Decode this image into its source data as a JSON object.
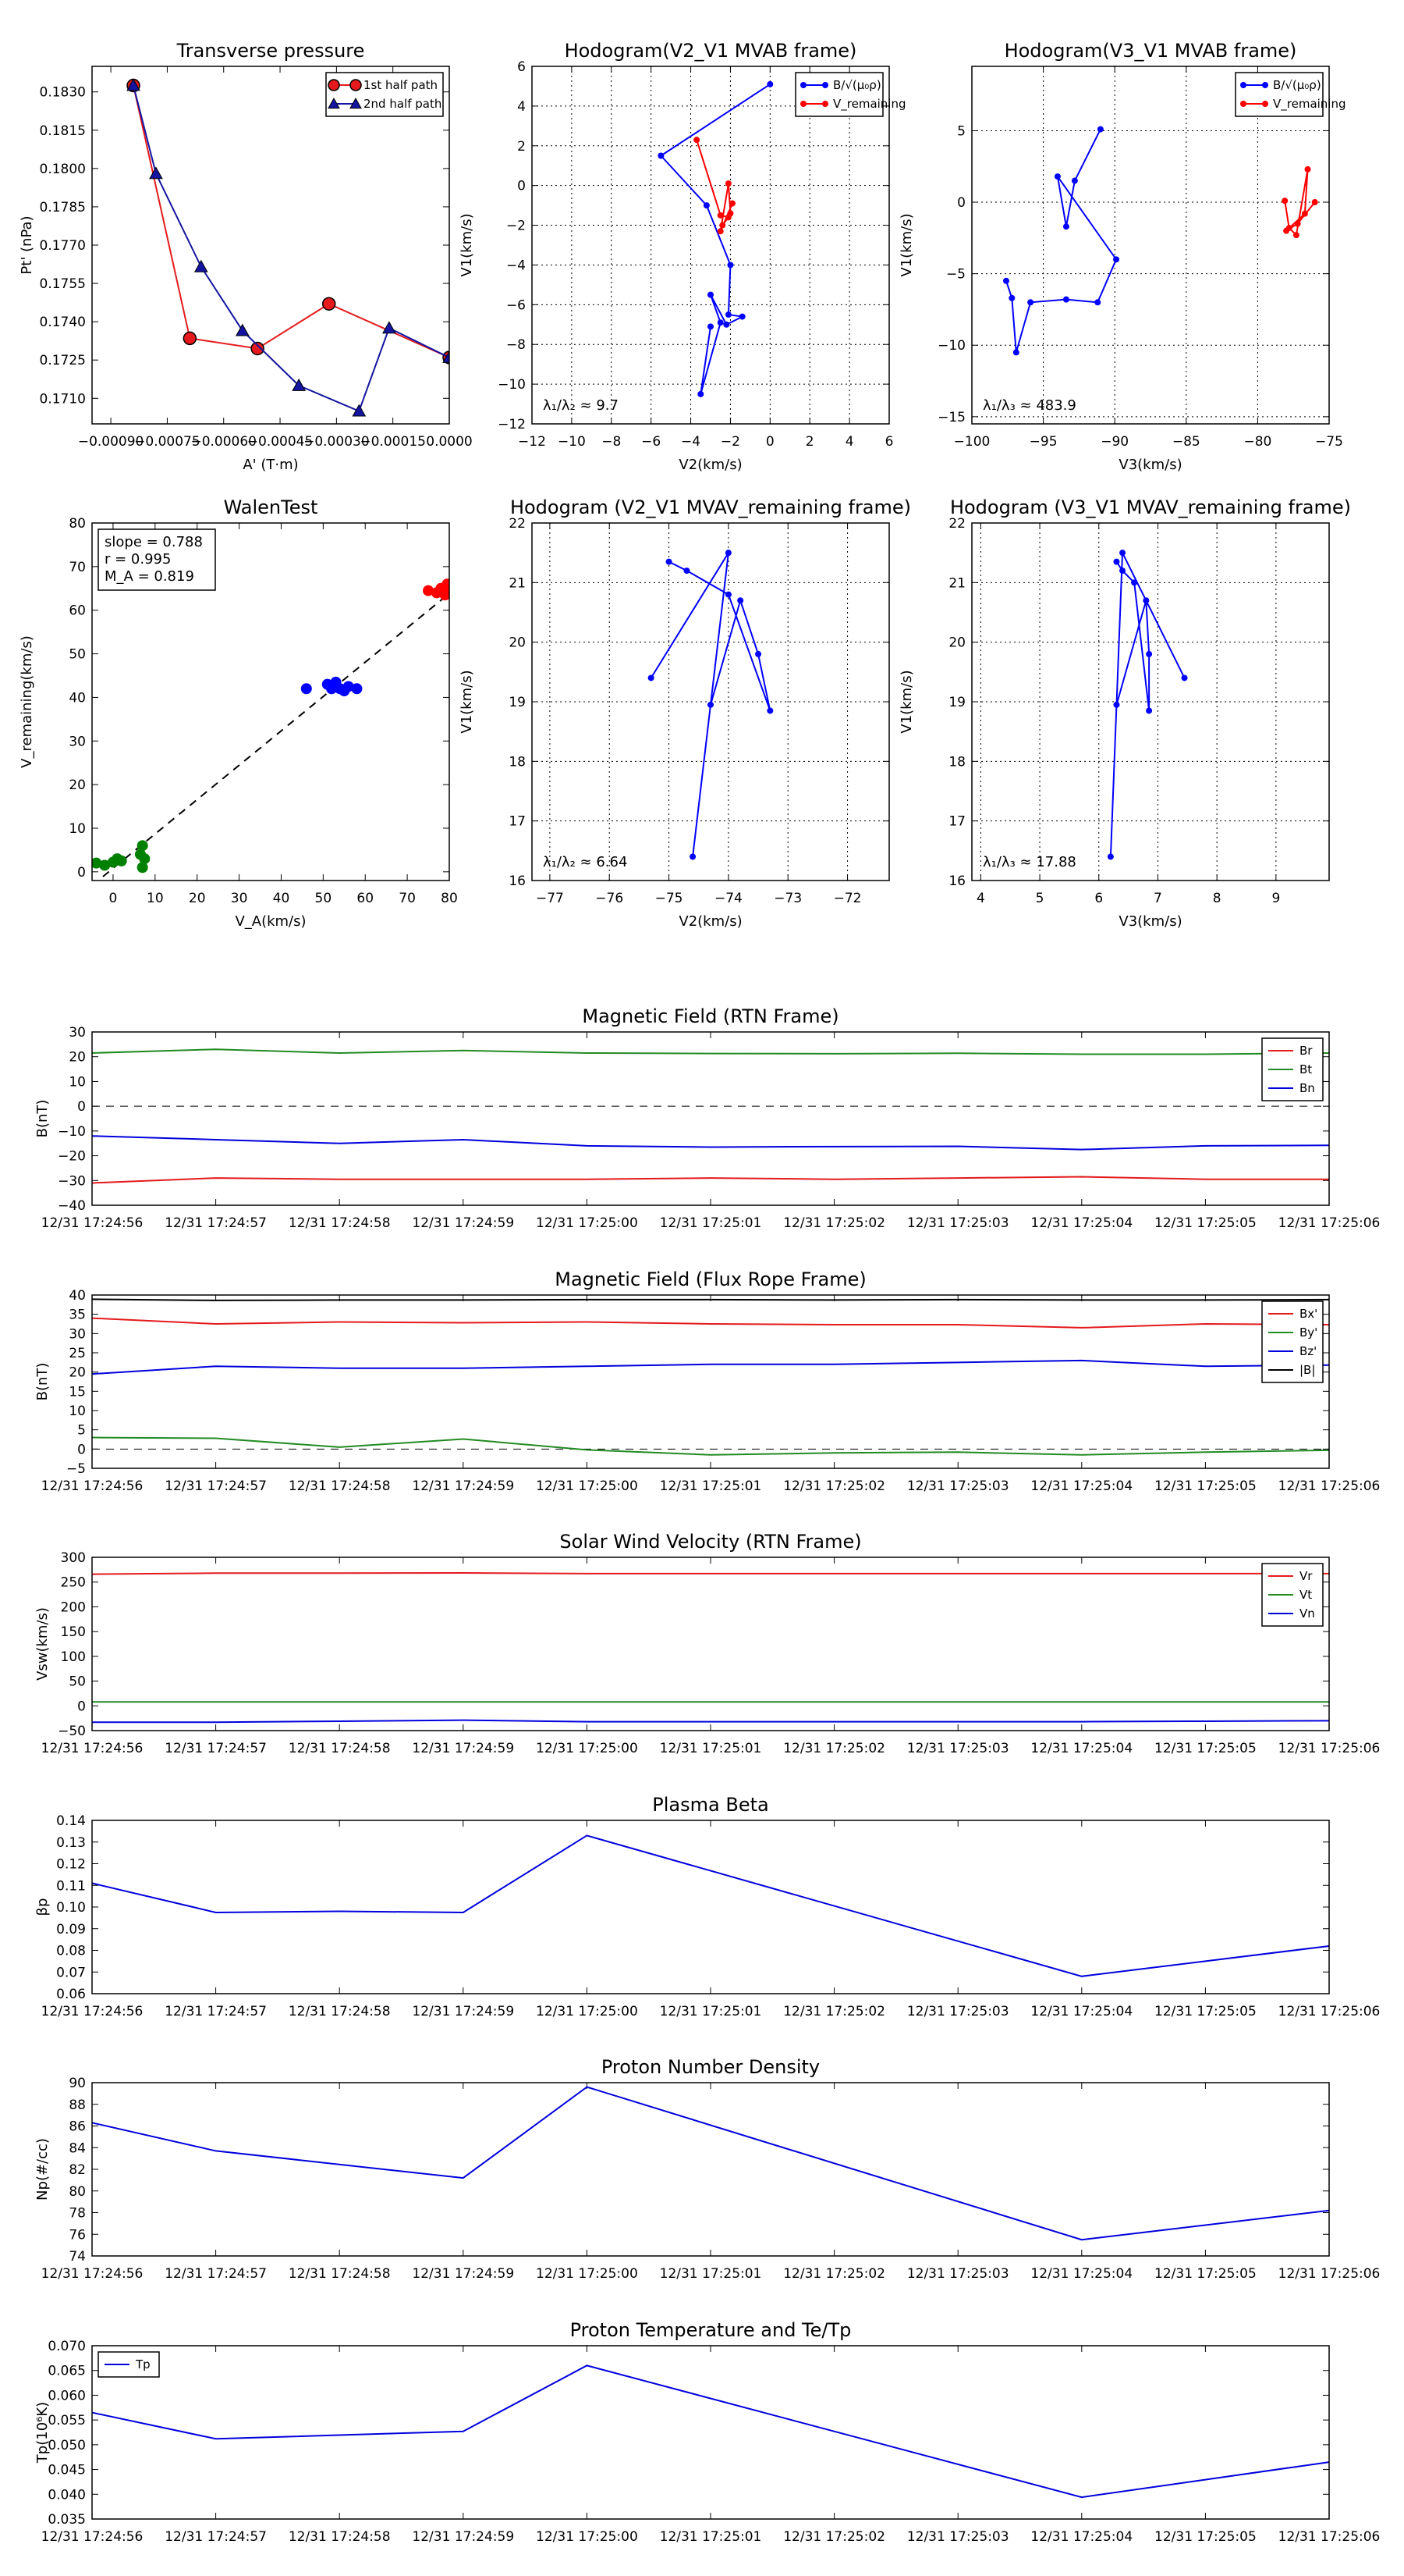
{
  "chart_data": [
    {
      "id": "transverse-pressure",
      "type": "line",
      "title": "Transverse pressure",
      "xlabel": "A' (T·m)",
      "ylabel": "Pt' (nPa)",
      "xlim": [
        -0.00095,
        0.0
      ],
      "ylim": [
        0.17,
        0.184
      ],
      "xticks": [
        -0.0009,
        -0.00075,
        -0.0006,
        -0.00045,
        -0.0003,
        -0.00015,
        0.0
      ],
      "xtick_labels": [
        "−0.00090",
        "−0.00075",
        "−0.00060",
        "−0.00045",
        "−0.00030",
        "−0.00015",
        "0.0000"
      ],
      "yticks": [
        0.171,
        0.1725,
        0.174,
        0.1755,
        0.177,
        0.1785,
        0.18,
        0.1815,
        0.183
      ],
      "ytick_labels": [
        "0.1710",
        "0.1725",
        "0.1740",
        "0.1755",
        "0.1770",
        "0.1785",
        "0.1800",
        "0.1815",
        "0.1830"
      ],
      "legend_position": "top-right",
      "series": [
        {
          "name": "1st half path",
          "color": "#e41a1c",
          "marker": "circle",
          "x": [
            -0.00084,
            -0.00069,
            -0.00051,
            -0.00032,
            0.0
          ],
          "y": [
            0.18325,
            0.17335,
            0.17295,
            0.1747,
            0.1726
          ]
        },
        {
          "name": "2nd half path",
          "color": "#1414a0",
          "marker": "triangle",
          "x": [
            -0.00084,
            -0.00078,
            -0.00066,
            -0.00055,
            -0.0004,
            -0.00024,
            -0.00016,
            0.0
          ],
          "y": [
            0.18325,
            0.1798,
            0.17615,
            0.17365,
            0.1715,
            0.1705,
            0.17375,
            0.1726
          ]
        }
      ]
    },
    {
      "id": "hodogram-v2-v1-mvab",
      "type": "line",
      "title": "Hodogram(V2_V1 MVAB frame)",
      "xlabel": "V2(km/s)",
      "ylabel": "V1(km/s)",
      "xlim": [
        -12,
        6
      ],
      "ylim": [
        -12,
        6
      ],
      "xticks": [
        -12,
        -10,
        -8,
        -6,
        -4,
        -2,
        0,
        2,
        4,
        6
      ],
      "xtick_labels": [
        "−12",
        "−10",
        "−8",
        "−6",
        "−4",
        "−2",
        "0",
        "2",
        "4",
        "6"
      ],
      "yticks": [
        -12,
        -10,
        -8,
        -6,
        -4,
        -2,
        0,
        2,
        4,
        6
      ],
      "ytick_labels": [
        "−12",
        "−10",
        "−8",
        "−6",
        "−4",
        "−2",
        "0",
        "2",
        "4",
        "6"
      ],
      "grid": true,
      "annotation": "λ₁/λ₂ ≈ 9.7",
      "legend_position": "top-right",
      "series": [
        {
          "name": "B/√(μ₀ρ)",
          "color": "#0000ff",
          "x": [
            0.0,
            -5.5,
            -3.2,
            -2.0,
            -2.1,
            -1.4,
            -2.2,
            -3.0,
            -2.5,
            -3.5,
            -3.0
          ],
          "y": [
            5.1,
            1.5,
            -1.0,
            -4.0,
            -6.5,
            -6.6,
            -7.0,
            -5.5,
            -6.9,
            -10.5,
            -7.1
          ]
        },
        {
          "name": "V_remaining",
          "color": "#ff0000",
          "x": [
            -3.7,
            -2.5,
            -2.1,
            -2.4,
            -2.0,
            -2.1,
            -2.5,
            -1.9
          ],
          "y": [
            2.3,
            -1.5,
            -1.6,
            -2.0,
            -1.4,
            0.1,
            -2.3,
            -0.9
          ]
        }
      ]
    },
    {
      "id": "hodogram-v3-v1-mvab",
      "type": "line",
      "title": "Hodogram(V3_V1 MVAB frame)",
      "xlabel": "V3(km/s)",
      "ylabel": "V1(km/s)",
      "xlim": [
        -100,
        -75
      ],
      "ylim": [
        -15.5,
        9.5
      ],
      "xticks": [
        -100,
        -95,
        -90,
        -85,
        -80,
        -75
      ],
      "xtick_labels": [
        "−100",
        "−95",
        "−90",
        "−85",
        "−80",
        "−75"
      ],
      "yticks": [
        -15,
        -10,
        -5,
        0,
        5
      ],
      "ytick_labels": [
        "−15",
        "−10",
        "−5",
        "0",
        "5"
      ],
      "grid": true,
      "annotation": "λ₁/λ₃ ≈ 483.9",
      "legend_position": "top-right",
      "series": [
        {
          "name": "B/√(μ₀ρ)",
          "color": "#0000ff",
          "x": [
            -91.0,
            -92.8,
            -93.4,
            -94.0,
            -89.9,
            -91.2,
            -93.4,
            -95.9,
            -96.9,
            -97.2,
            -97.6
          ],
          "y": [
            5.1,
            1.5,
            -1.7,
            1.8,
            -4.0,
            -7.0,
            -6.8,
            -7.0,
            -10.5,
            -6.7,
            -5.5
          ]
        },
        {
          "name": "V_remaining",
          "color": "#ff0000",
          "x": [
            -76.0,
            -77.2,
            -78.0,
            -76.7,
            -76.5,
            -77.3,
            -77.8,
            -78.1
          ],
          "y": [
            0.0,
            -1.5,
            -2.0,
            -0.8,
            2.3,
            -2.3,
            -1.8,
            0.1
          ]
        }
      ]
    },
    {
      "id": "walen-test",
      "type": "scatter",
      "title": "WalenTest",
      "xlabel": "V_A(km/s)",
      "ylabel": "V_remaining(km/s)",
      "xlim": [
        -5,
        80
      ],
      "ylim": [
        -2,
        80
      ],
      "xticks": [
        0,
        10,
        20,
        30,
        40,
        50,
        60,
        70,
        80
      ],
      "xtick_labels": [
        "0",
        "10",
        "20",
        "30",
        "40",
        "50",
        "60",
        "70",
        "80"
      ],
      "yticks": [
        0,
        10,
        20,
        30,
        40,
        50,
        60,
        70,
        80
      ],
      "ytick_labels": [
        "0",
        "10",
        "20",
        "30",
        "40",
        "50",
        "60",
        "70",
        "80"
      ],
      "stats": [
        "slope = 0.788",
        "r = 0.995",
        "M_A = 0.819"
      ],
      "fit_line": {
        "slope": 0.788,
        "intercept": 0.8
      },
      "series": [
        {
          "name": "green",
          "color": "#008000",
          "x": [
            -4,
            -2,
            0,
            1,
            2,
            7,
            7.5,
            7,
            6.5
          ],
          "y": [
            2,
            1.5,
            2.2,
            3,
            2.5,
            6,
            3,
            1,
            4
          ]
        },
        {
          "name": "blue",
          "color": "#0000ff",
          "x": [
            46,
            51,
            52,
            53,
            54,
            55,
            56,
            58
          ],
          "y": [
            42,
            43,
            42,
            43.5,
            42,
            41.5,
            42.5,
            42
          ]
        },
        {
          "name": "red",
          "color": "#ff0000",
          "x": [
            75,
            77,
            78,
            79,
            80,
            79.5
          ],
          "y": [
            64.5,
            64,
            65,
            63.5,
            64.5,
            66
          ]
        }
      ]
    },
    {
      "id": "hodogram-v2-v1-mvav",
      "type": "line",
      "title": "Hodogram (V2_V1 MVAV_remaining frame)",
      "xlabel": "V2(km/s)",
      "ylabel": "V1(km/s)",
      "xlim": [
        -77.3,
        -71.3
      ],
      "ylim": [
        16,
        22
      ],
      "xticks": [
        -77,
        -76,
        -75,
        -74,
        -73,
        -72
      ],
      "xtick_labels": [
        "−77",
        "−76",
        "−75",
        "−74",
        "−73",
        "−72"
      ],
      "yticks": [
        16,
        17,
        18,
        19,
        20,
        21,
        22
      ],
      "ytick_labels": [
        "16",
        "17",
        "18",
        "19",
        "20",
        "21",
        "22"
      ],
      "grid": true,
      "annotation": "λ₁/λ₂ ≈ 6.64",
      "series": [
        {
          "name": "hodogram",
          "color": "#0000ff",
          "x": [
            -75.3,
            -74.0,
            -74.6,
            -74.3,
            -73.8,
            -73.5,
            -73.3,
            -74.0,
            -74.7,
            -75.0
          ],
          "y": [
            19.4,
            21.5,
            16.4,
            18.95,
            20.7,
            19.8,
            18.85,
            20.8,
            21.2,
            21.35
          ]
        }
      ]
    },
    {
      "id": "hodogram-v3-v1-mvav",
      "type": "line",
      "title": "Hodogram (V3_V1 MVAV_remaining frame)",
      "xlabel": "V3(km/s)",
      "ylabel": "V1(km/s)",
      "xlim": [
        3.85,
        9.9
      ],
      "ylim": [
        16,
        22
      ],
      "xticks": [
        4,
        5,
        6,
        7,
        8,
        9
      ],
      "xtick_labels": [
        "4",
        "5",
        "6",
        "7",
        "8",
        "9"
      ],
      "yticks": [
        16,
        17,
        18,
        19,
        20,
        21,
        22
      ],
      "ytick_labels": [
        "16",
        "17",
        "18",
        "19",
        "20",
        "21",
        "22"
      ],
      "grid": true,
      "annotation": "λ₁/λ₃ ≈ 17.88",
      "series": [
        {
          "name": "hodogram",
          "color": "#0000ff",
          "x": [
            7.45,
            6.4,
            6.2,
            6.3,
            6.8,
            6.85,
            6.85,
            6.6,
            6.4,
            6.3
          ],
          "y": [
            19.4,
            21.5,
            16.4,
            18.95,
            20.7,
            19.8,
            18.85,
            21.0,
            21.2,
            21.35
          ]
        }
      ]
    },
    {
      "id": "magnetic-field-rtn",
      "type": "line",
      "title": "Magnetic Field (RTN Frame)",
      "xlabel": "",
      "ylabel": "B(nT)",
      "ylim": [
        -40,
        30
      ],
      "yticks": [
        -40,
        -30,
        -20,
        -10,
        0,
        10,
        20,
        30
      ],
      "ytick_labels": [
        "−40",
        "−30",
        "−20",
        "−10",
        "0",
        "10",
        "20",
        "30"
      ],
      "zero_line": true,
      "legend_position": "top-right",
      "series": [
        {
          "name": "Br",
          "color": "#e41a1c",
          "values": [
            -31,
            -29,
            -29.5,
            -29.5,
            -29.5,
            -29,
            -29.5,
            -29,
            -28.5,
            -29.5,
            -29.5
          ]
        },
        {
          "name": "Bt",
          "color": "#228b22",
          "values": [
            21.5,
            23,
            21.5,
            22.5,
            21.5,
            21.3,
            21.2,
            21.4,
            21,
            21,
            21.5
          ]
        },
        {
          "name": "Bn",
          "color": "#0000dd",
          "values": [
            -12,
            -13.5,
            -15,
            -13.5,
            -16,
            -16.5,
            -16.3,
            -16.2,
            -17.5,
            -16,
            -15.8
          ]
        }
      ]
    },
    {
      "id": "magnetic-field-flux-rope",
      "type": "line",
      "title": "Magnetic Field (Flux Rope Frame)",
      "xlabel": "",
      "ylabel": "B(nT)",
      "ylim": [
        -5,
        40
      ],
      "yticks": [
        -5,
        0,
        5,
        10,
        15,
        20,
        25,
        30,
        35,
        40
      ],
      "ytick_labels": [
        "−5",
        "0",
        "5",
        "10",
        "15",
        "20",
        "25",
        "30",
        "35",
        "40"
      ],
      "zero_line": true,
      "legend_position": "top-right",
      "series": [
        {
          "name": "Bx'",
          "color": "#e41a1c",
          "values": [
            34,
            32.5,
            33,
            32.8,
            33,
            32.5,
            32.3,
            32.3,
            31.5,
            32.5,
            32.3
          ]
        },
        {
          "name": "By'",
          "color": "#228b22",
          "values": [
            3,
            2.8,
            0.5,
            2.6,
            -0.2,
            -1.5,
            -1.0,
            -0.8,
            -1.5,
            -0.8,
            -0.3
          ]
        },
        {
          "name": "Bz'",
          "color": "#0000dd",
          "values": [
            19.5,
            21.5,
            21,
            21,
            21.5,
            22,
            22,
            22.5,
            23,
            21.5,
            21.8
          ]
        },
        {
          "name": "|B|",
          "color": "#000000",
          "values": [
            38.9,
            38.6,
            38.7,
            38.7,
            38.8,
            38.8,
            38.7,
            38.8,
            38.7,
            38.7,
            38.8
          ]
        }
      ]
    },
    {
      "id": "solar-wind-velocity",
      "type": "line",
      "title": "Solar Wind Velocity (RTN Frame)",
      "xlabel": "",
      "ylabel": "Vsw(km/s)",
      "ylim": [
        -50,
        300
      ],
      "yticks": [
        -50,
        0,
        50,
        100,
        150,
        200,
        250,
        300
      ],
      "ytick_labels": [
        "−50",
        "0",
        "50",
        "100",
        "150",
        "200",
        "250",
        "300"
      ],
      "legend_position": "top-right",
      "series": [
        {
          "name": "Vr",
          "color": "#e41a1c",
          "values": [
            266,
            268,
            268,
            268.5,
            267,
            267,
            267,
            267,
            267,
            267,
            267
          ]
        },
        {
          "name": "Vt",
          "color": "#228b22",
          "values": [
            8,
            8,
            8,
            8,
            8,
            8,
            8,
            8,
            8,
            8,
            8
          ]
        },
        {
          "name": "Vn",
          "color": "#0000dd",
          "values": [
            -33,
            -33,
            -31,
            -29,
            -32,
            -32,
            -32,
            -32,
            -32,
            -31,
            -30
          ]
        }
      ]
    },
    {
      "id": "plasma-beta",
      "type": "line",
      "title": "Plasma Beta",
      "xlabel": "",
      "ylabel": "βp",
      "ylim": [
        0.06,
        0.14
      ],
      "yticks": [
        0.06,
        0.07,
        0.08,
        0.09,
        0.1,
        0.11,
        0.12,
        0.13,
        0.14
      ],
      "ytick_labels": [
        "0.06",
        "0.07",
        "0.08",
        "0.09",
        "0.10",
        "0.11",
        "0.12",
        "0.13",
        "0.14"
      ],
      "series": [
        {
          "name": "beta",
          "color": "#0000dd",
          "x_idx": [
            0,
            1,
            2,
            3,
            4,
            8,
            10
          ],
          "values": [
            0.111,
            0.0975,
            0.098,
            0.0975,
            0.133,
            0.068,
            0.082
          ]
        }
      ]
    },
    {
      "id": "proton-density",
      "type": "line",
      "title": "Proton Number Density",
      "xlabel": "",
      "ylabel": "Np(#/cc)",
      "ylim": [
        74,
        90
      ],
      "yticks": [
        74,
        76,
        78,
        80,
        82,
        84,
        86,
        88,
        90
      ],
      "ytick_labels": [
        "74",
        "76",
        "78",
        "80",
        "82",
        "84",
        "86",
        "88",
        "90"
      ],
      "series": [
        {
          "name": "Np",
          "color": "#0000dd",
          "x_idx": [
            0,
            1,
            3,
            4,
            8,
            10
          ],
          "values": [
            86.3,
            83.7,
            81.2,
            89.6,
            75.5,
            78.2
          ]
        }
      ]
    },
    {
      "id": "proton-temperature",
      "type": "line",
      "title": "Proton Temperature and Te/Tp",
      "xlabel": "",
      "ylabel": "Tp(10⁶K)",
      "ylim": [
        0.035,
        0.07
      ],
      "yticks": [
        0.035,
        0.04,
        0.045,
        0.05,
        0.055,
        0.06,
        0.065,
        0.07
      ],
      "ytick_labels": [
        "0.035",
        "0.040",
        "0.045",
        "0.050",
        "0.055",
        "0.060",
        "0.065",
        "0.070"
      ],
      "legend_position": "top-left",
      "series": [
        {
          "name": "Tp",
          "color": "#0000dd",
          "x_idx": [
            0,
            1,
            3,
            4,
            8,
            10
          ],
          "values": [
            0.0565,
            0.0512,
            0.0527,
            0.066,
            0.0394,
            0.0465
          ]
        }
      ]
    }
  ],
  "time_axis_labels": [
    "12/31 17:24:56",
    "12/31 17:24:57",
    "12/31 17:24:58",
    "12/31 17:24:59",
    "12/31 17:25:00",
    "12/31 17:25:01",
    "12/31 17:25:02",
    "12/31 17:25:03",
    "12/31 17:25:04",
    "12/31 17:25:05",
    "12/31 17:25:06"
  ]
}
